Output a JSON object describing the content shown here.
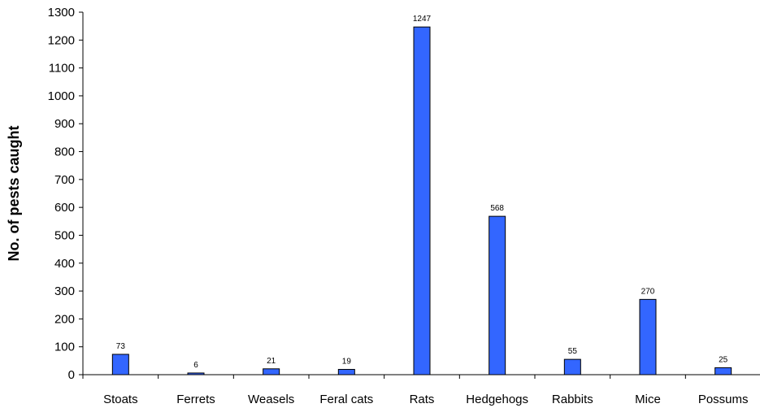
{
  "chart_data": {
    "type": "bar",
    "title": "",
    "xlabel": "",
    "ylabel": "No. of pests caught",
    "categories": [
      "Stoats",
      "Ferrets",
      "Weasels",
      "Feral cats",
      "Rats",
      "Hedgehogs",
      "Rabbits",
      "Mice",
      "Possums"
    ],
    "values": [
      73,
      6,
      21,
      19,
      1247,
      568,
      55,
      270,
      25
    ],
    "ylim": [
      0,
      1300
    ],
    "yticks": [
      0,
      100,
      200,
      300,
      400,
      500,
      600,
      700,
      800,
      900,
      1000,
      1100,
      1200,
      1300
    ],
    "grid": false,
    "legend": "none",
    "colors": {
      "bar_fill": "#3366ff",
      "bar_stroke": "#000000",
      "axis": "#000000"
    }
  }
}
